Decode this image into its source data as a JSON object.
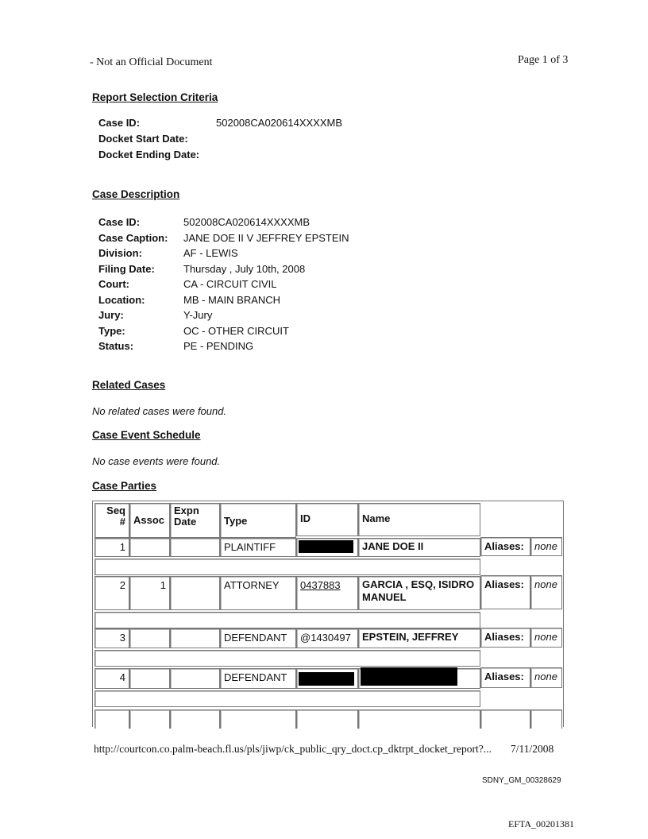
{
  "header": {
    "disclaimer": "- Not an Official Document",
    "page": "Page 1 of 3"
  },
  "criteria": {
    "title": "Report Selection Criteria",
    "fields": [
      {
        "label": "Case ID:",
        "value": "502008CA020614XXXXMB"
      },
      {
        "label": "Docket Start Date:",
        "value": ""
      },
      {
        "label": "Docket Ending Date:",
        "value": ""
      }
    ]
  },
  "description": {
    "title": "Case Description",
    "fields": [
      {
        "label": "Case ID:",
        "value": "502008CA020614XXXXMB"
      },
      {
        "label": "Case Caption:",
        "value": "JANE DOE II V JEFFREY EPSTEIN"
      },
      {
        "label": "Division:",
        "value": "AF - LEWIS"
      },
      {
        "label": "Filing Date:",
        "value": "Thursday , July 10th, 2008"
      },
      {
        "label": "Court:",
        "value": "CA - CIRCUIT CIVIL"
      },
      {
        "label": "Location:",
        "value": "MB - MAIN BRANCH"
      },
      {
        "label": "Jury:",
        "value": "Y-Jury"
      },
      {
        "label": "Type:",
        "value": "OC - OTHER CIRCUIT"
      },
      {
        "label": "Status:",
        "value": "PE - PENDING"
      }
    ]
  },
  "related": {
    "title": "Related Cases",
    "text": "No related cases were found."
  },
  "events": {
    "title": "Case Event Schedule",
    "text": "No case events were found."
  },
  "parties": {
    "title": "Case Parties",
    "headers": {
      "seq": "Seq #",
      "assoc": "Assoc",
      "expn": "Expn Date",
      "type": "Type",
      "id": "ID",
      "name": "Name"
    },
    "rows": [
      {
        "seq": "1",
        "assoc": "",
        "expn": "",
        "type": "PLAINTIFF",
        "id": "",
        "name": "JANE DOE II",
        "aliases_label": "Aliases:",
        "aliases": "none"
      },
      {
        "seq": "2",
        "assoc": "1",
        "expn": "",
        "type": "ATTORNEY",
        "id": "0437883",
        "name": "GARCIA , ESQ, ISIDRO MANUEL",
        "aliases_label": "Aliases:",
        "aliases": "none"
      },
      {
        "seq": "3",
        "assoc": "",
        "expn": "",
        "type": "DEFENDANT",
        "id": "@1430497",
        "name": "EPSTEIN, JEFFREY",
        "aliases_label": "Aliases:",
        "aliases": "none"
      },
      {
        "seq": "4",
        "assoc": "",
        "expn": "",
        "type": "DEFENDANT",
        "id": "",
        "name": "",
        "aliases_label": "Aliases:",
        "aliases": "none"
      }
    ]
  },
  "footer": {
    "url": "http://courtcon.co.palm-beach.fl.us/pls/jiwp/ck_public_qry_doct.cp_dktrpt_docket_report?...",
    "date": "7/11/2008",
    "bates": "SDNY_GM_00328629",
    "efta": "EFTA_00201381"
  }
}
